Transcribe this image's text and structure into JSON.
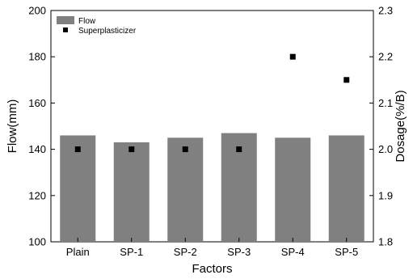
{
  "chart_data": {
    "type": "bar",
    "xlabel": "Factors",
    "ylabel": "Flow(mm)",
    "y2label": "Dosage(%/B)",
    "categories": [
      "Plain",
      "SP-1",
      "SP-2",
      "SP-3",
      "SP-4",
      "SP-5"
    ],
    "ylim": [
      100,
      200
    ],
    "yticks": [
      "100",
      "120",
      "140",
      "160",
      "180",
      "200"
    ],
    "y2lim": [
      1.8,
      2.3
    ],
    "y2ticks": [
      "1.8",
      "1.9",
      "2.0",
      "2.1",
      "2.2",
      "2.3"
    ],
    "series": [
      {
        "name": "Flow",
        "kind": "bar",
        "axis": "left",
        "color": "#808080",
        "values": [
          146,
          143,
          145,
          147,
          145,
          146
        ]
      },
      {
        "name": "Superplasticizer",
        "kind": "scatter",
        "axis": "right",
        "color": "#000000",
        "values": [
          2.0,
          2.0,
          2.0,
          2.0,
          2.2,
          2.15
        ]
      }
    ],
    "legend": {
      "position": "top-left",
      "entries": [
        "Flow",
        "Superplasticizer"
      ]
    },
    "grid": false
  }
}
